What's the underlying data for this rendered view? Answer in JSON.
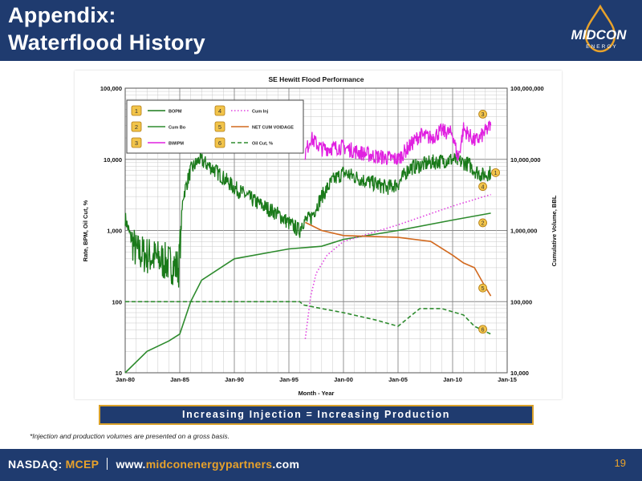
{
  "slide": {
    "title_line1": "Appendix:",
    "title_line2": "Waterflood History",
    "logo_text": "MIDCON",
    "logo_subtext": "ENERGY",
    "callout": "Increasing Injection = Increasing Production",
    "footnote": "*Injection and production volumes are presented on a gross basis.",
    "footer_prefix": "NASDAQ: ",
    "footer_ticker": "MCEP",
    "footer_url_prefix": "www.",
    "footer_url_brand": "midconenergypartners",
    "footer_url_suffix": ".com",
    "page_number": "19"
  },
  "colors": {
    "navy": "#1f3b6f",
    "gold": "#e8a22b",
    "bopm": "#1a7a1a",
    "cum_bo": "#2e8b2e",
    "bwipm": "#e020e0",
    "cum_inj": "#e040e0",
    "net_cum_voidage": "#d2691e",
    "oil_cut": "#2e8b2e"
  },
  "chart_data": {
    "type": "line",
    "title": "SE Hewitt Flood Performance",
    "xlabel": "Month - Year",
    "ylabel_left": "Rate, BPM, Oil Cut, %",
    "ylabel_right": "Cumulative Volume, BBL",
    "y_scale": "log",
    "ylim_left": [
      10,
      100000
    ],
    "ylim_right": [
      10000,
      100000000
    ],
    "xlim": [
      1980,
      2015
    ],
    "x_ticks": [
      "Jan-80",
      "Jan-85",
      "Jan-90",
      "Jan-95",
      "Jan-00",
      "Jan-05",
      "Jan-10",
      "Jan-15"
    ],
    "y_ticks_left": [
      "10",
      "100",
      "1,000",
      "10,000",
      "100,000"
    ],
    "y_ticks_right": [
      "10,000",
      "100,000",
      "1,000,000",
      "10,000,000",
      "100,000,000"
    ],
    "grid": true,
    "legend_position": "top-left",
    "series": [
      {
        "id": "1",
        "name": "BOPM",
        "axis": "left",
        "style": "solid",
        "color": "#1a7a1a",
        "noisy": true,
        "x": [
          1980,
          1980.4,
          1981,
          1983,
          1984.9,
          1985.3,
          1986,
          1986.8,
          1988,
          1990,
          1992,
          1994,
          1995.2,
          1996,
          1996.2,
          1997,
          1998,
          1999,
          2000,
          2002,
          2004,
          2005,
          2006,
          2008,
          2010,
          2011.5,
          2012,
          2012.7,
          2013.5
        ],
        "y": [
          1500,
          900,
          500,
          400,
          300,
          3000,
          7000,
          10000,
          7500,
          4000,
          2500,
          1700,
          1200,
          1000,
          1300,
          1500,
          3000,
          5000,
          6500,
          5000,
          4000,
          4500,
          7500,
          9000,
          10000,
          8500,
          7000,
          6000,
          6500
        ]
      },
      {
        "id": "2",
        "name": "Cum Bo",
        "axis": "right",
        "style": "solid",
        "color": "#2e8b2e",
        "x": [
          1980,
          1982,
          1984,
          1985,
          1986,
          1987,
          1990,
          1995,
          1998,
          2000,
          2005,
          2010,
          2013.5
        ],
        "y": [
          10000,
          20000,
          28000,
          35000,
          100000,
          200000,
          400000,
          550000,
          600000,
          750000,
          1000000,
          1400000,
          1750000
        ]
      },
      {
        "id": "3",
        "name": "BWIPM",
        "axis": "left",
        "style": "solid",
        "color": "#e020e0",
        "noisy": true,
        "x": [
          1996.5,
          1997,
          1998,
          2000,
          2001,
          2003,
          2005,
          2006,
          2007,
          2008,
          2009,
          2010,
          2010.5,
          2011,
          2012,
          2012.5,
          2013.5
        ],
        "y": [
          12000,
          20000,
          14000,
          15000,
          13000,
          11000,
          10000,
          15000,
          22000,
          20000,
          25000,
          23000,
          10000,
          27000,
          18000,
          20000,
          30000
        ]
      },
      {
        "id": "4",
        "name": "Cum Inj",
        "axis": "right",
        "style": "dotted",
        "color": "#e040e0",
        "x": [
          1996.5,
          1997,
          1997.5,
          1998.5,
          2000,
          2005,
          2010,
          2013.5
        ],
        "y": [
          30000,
          120000,
          250000,
          450000,
          700000,
          1200000,
          2200000,
          3200000
        ]
      },
      {
        "id": "5",
        "name": "NET CUM VOIDAGE",
        "axis": "right",
        "style": "solid",
        "color": "#d2691e",
        "x": [
          1996.5,
          1998,
          2000,
          2005,
          2008,
          2010,
          2011,
          2012,
          2013,
          2013.5
        ],
        "y": [
          1300000,
          1000000,
          850000,
          800000,
          700000,
          450000,
          350000,
          300000,
          160000,
          120000
        ]
      },
      {
        "id": "6",
        "name": "Oil Cut, %",
        "axis": "left",
        "style": "dashed",
        "color": "#2e8b2e",
        "x": [
          1980,
          1996,
          1996.3,
          1998,
          2000,
          2003,
          2005,
          2006,
          2007,
          2009,
          2011,
          2012,
          2013,
          2013.5
        ],
        "y": [
          100,
          100,
          90,
          80,
          70,
          55,
          45,
          60,
          80,
          80,
          65,
          45,
          38,
          35
        ]
      }
    ]
  }
}
